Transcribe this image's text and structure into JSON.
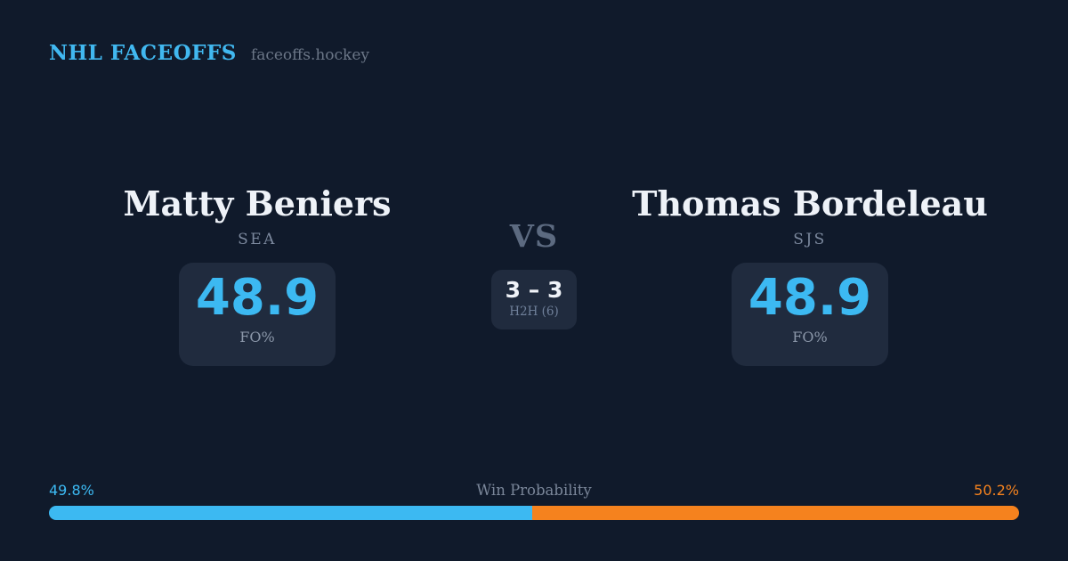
{
  "header": {
    "brand": "NHL FACEOFFS",
    "site": "faceoffs.hockey"
  },
  "player_left": {
    "name": "Matty Beniers",
    "team": "SEA",
    "stat_value": "48.9",
    "stat_label": "FO%"
  },
  "center": {
    "vs_label": "VS",
    "h2h_score": "3 – 3",
    "h2h_label": "H2H (6)"
  },
  "player_right": {
    "name": "Thomas Bordeleau",
    "team": "SJS",
    "stat_value": "48.9",
    "stat_label": "FO%"
  },
  "win_probability": {
    "title": "Win Probability",
    "left_label": "49.8%",
    "right_label": "50.2%",
    "left_value": 49.8,
    "right_value": 50.2
  },
  "colors": {
    "background": "#101a2b",
    "card": "#202b3e",
    "accent_blue": "#3cb9f2",
    "accent_orange": "#f5821e",
    "muted_text": "#7a8699",
    "name_text": "#eef2f8"
  }
}
